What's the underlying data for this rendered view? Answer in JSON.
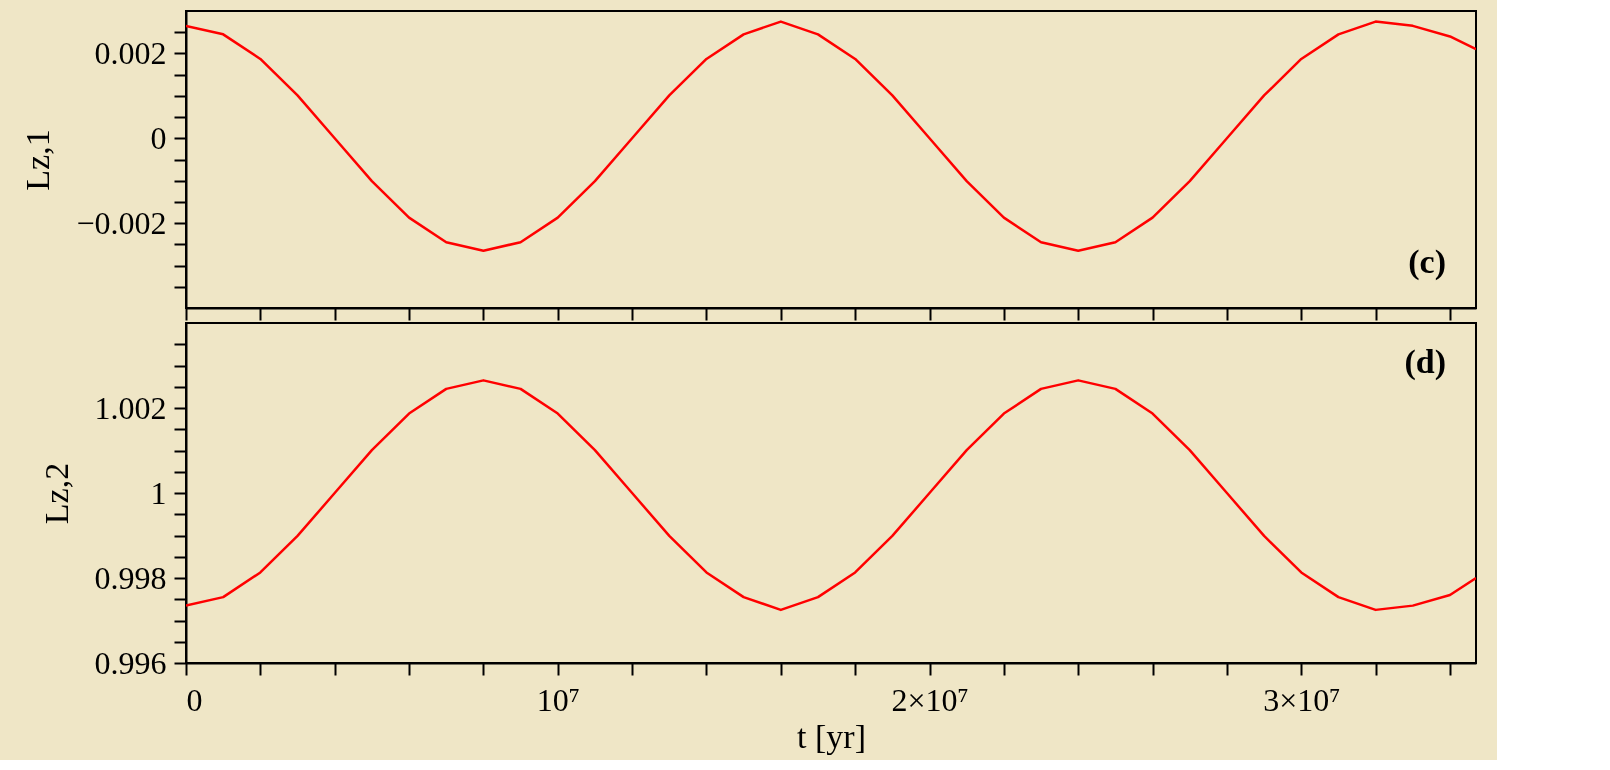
{
  "chart_data": [
    {
      "type": "line",
      "ylabel": "Lz,1",
      "annotations": [
        "(c)"
      ],
      "tick_labels": "y",
      "xlim": [
        0,
        34700000
      ],
      "xticks": [
        {
          "value": 0,
          "label": null
        },
        {
          "value": 2000000,
          "label": null
        },
        {
          "value": 4000000,
          "label": null
        },
        {
          "value": 6000000,
          "label": null
        },
        {
          "value": 8000000,
          "label": null
        },
        {
          "value": 10000000,
          "label": null
        },
        {
          "value": 12000000,
          "label": null
        },
        {
          "value": 14000000,
          "label": null
        },
        {
          "value": 16000000,
          "label": null
        },
        {
          "value": 18000000,
          "label": null
        },
        {
          "value": 20000000,
          "label": null
        },
        {
          "value": 22000000,
          "label": null
        },
        {
          "value": 24000000,
          "label": null
        },
        {
          "value": 26000000,
          "label": null
        },
        {
          "value": 28000000,
          "label": null
        },
        {
          "value": 30000000,
          "label": null
        },
        {
          "value": 32000000,
          "label": null
        },
        {
          "value": 34000000,
          "label": null
        }
      ],
      "ylim": [
        -0.004,
        0.003
      ],
      "yticks": [
        {
          "value": -0.0035,
          "label": null
        },
        {
          "value": -0.003,
          "label": null
        },
        {
          "value": -0.0025,
          "label": null
        },
        {
          "value": -0.002,
          "label": "−0.002"
        },
        {
          "value": -0.0015,
          "label": null
        },
        {
          "value": -0.001,
          "label": null
        },
        {
          "value": -0.0005,
          "label": null
        },
        0,
        {
          "value": 0.0005,
          "label": null
        },
        {
          "value": 0.001,
          "label": null
        },
        {
          "value": 0.0015,
          "label": null
        },
        0.002,
        {
          "value": 0.0025,
          "label": null
        }
      ],
      "x": [
        0,
        1000000,
        2000000,
        3000000,
        4000000,
        5000000,
        6000000,
        7000000,
        8000000,
        9000000,
        10000000,
        11000000,
        12000000,
        13000000,
        14000000,
        15000000,
        16000000,
        17000000,
        18000000,
        19000000,
        20000000,
        21000000,
        22000000,
        23000000,
        24000000,
        25000000,
        26000000,
        27000000,
        28000000,
        29000000,
        30000000,
        31000000,
        32000000,
        33000000,
        34000000,
        34700000
      ],
      "series": [
        {
          "color": "#ff0000",
          "values": [
            0.00265,
            0.00245,
            0.00187,
            0.00101,
            0.0,
            -0.00101,
            -0.00187,
            -0.00245,
            -0.00265,
            -0.00245,
            -0.00187,
            -0.00101,
            0.0,
            0.00101,
            0.00187,
            0.00245,
            0.00275,
            0.00245,
            0.00187,
            0.00101,
            0.0,
            -0.00101,
            -0.00187,
            -0.00245,
            -0.00265,
            -0.00245,
            -0.00187,
            -0.00101,
            0.0,
            0.00101,
            0.00187,
            0.00245,
            0.00275,
            0.00265,
            0.0024,
            0.0021
          ]
        }
      ]
    },
    {
      "type": "line",
      "ylabel": "Lz,2",
      "xlabel": "t [yr]",
      "annotations": [
        "(d)"
      ],
      "xlim": [
        0,
        34700000
      ],
      "xticks": [
        0,
        {
          "value": 2000000,
          "label": null
        },
        {
          "value": 4000000,
          "label": null
        },
        {
          "value": 6000000,
          "label": null
        },
        {
          "value": 8000000,
          "label": null
        },
        {
          "value": 10000000,
          "label": "10⁷"
        },
        {
          "value": 12000000,
          "label": null
        },
        {
          "value": 14000000,
          "label": null
        },
        {
          "value": 16000000,
          "label": null
        },
        {
          "value": 18000000,
          "label": null
        },
        {
          "value": 20000000,
          "label": "2×10⁷"
        },
        {
          "value": 22000000,
          "label": null
        },
        {
          "value": 24000000,
          "label": null
        },
        {
          "value": 26000000,
          "label": null
        },
        {
          "value": 28000000,
          "label": null
        },
        {
          "value": 30000000,
          "label": "3×10⁷"
        },
        {
          "value": 32000000,
          "label": null
        },
        {
          "value": 34000000,
          "label": null
        }
      ],
      "ylim": [
        0.996,
        1.004
      ],
      "yticks": [
        0.996,
        {
          "value": 0.9965,
          "label": null
        },
        {
          "value": 0.997,
          "label": null
        },
        {
          "value": 0.9975,
          "label": null
        },
        0.998,
        {
          "value": 0.9985,
          "label": null
        },
        {
          "value": 0.999,
          "label": null
        },
        {
          "value": 0.9995,
          "label": null
        },
        1,
        {
          "value": 1.0005,
          "label": null
        },
        {
          "value": 1.001,
          "label": null
        },
        {
          "value": 1.0015,
          "label": null
        },
        1.002,
        {
          "value": 1.0025,
          "label": null
        },
        {
          "value": 1.003,
          "label": null
        },
        {
          "value": 1.0035,
          "label": null
        }
      ],
      "x": [
        0,
        1000000,
        2000000,
        3000000,
        4000000,
        5000000,
        6000000,
        7000000,
        8000000,
        9000000,
        10000000,
        11000000,
        12000000,
        13000000,
        14000000,
        15000000,
        16000000,
        17000000,
        18000000,
        19000000,
        20000000,
        21000000,
        22000000,
        23000000,
        24000000,
        25000000,
        26000000,
        27000000,
        28000000,
        29000000,
        30000000,
        31000000,
        32000000,
        33000000,
        34000000,
        34700000
      ],
      "series": [
        {
          "color": "#ff0000",
          "values": [
            0.99735,
            0.99755,
            0.99813,
            0.99899,
            1.0,
            1.00101,
            1.00187,
            1.00245,
            1.00265,
            1.00245,
            1.00187,
            1.00101,
            1.0,
            0.99899,
            0.99813,
            0.99755,
            0.99725,
            0.99755,
            0.99813,
            0.99899,
            1.0,
            1.00101,
            1.00187,
            1.00245,
            1.00265,
            1.00245,
            1.00187,
            1.00101,
            1.0,
            0.99899,
            0.99813,
            0.99755,
            0.99725,
            0.99735,
            0.9976,
            0.998
          ]
        }
      ]
    }
  ]
}
